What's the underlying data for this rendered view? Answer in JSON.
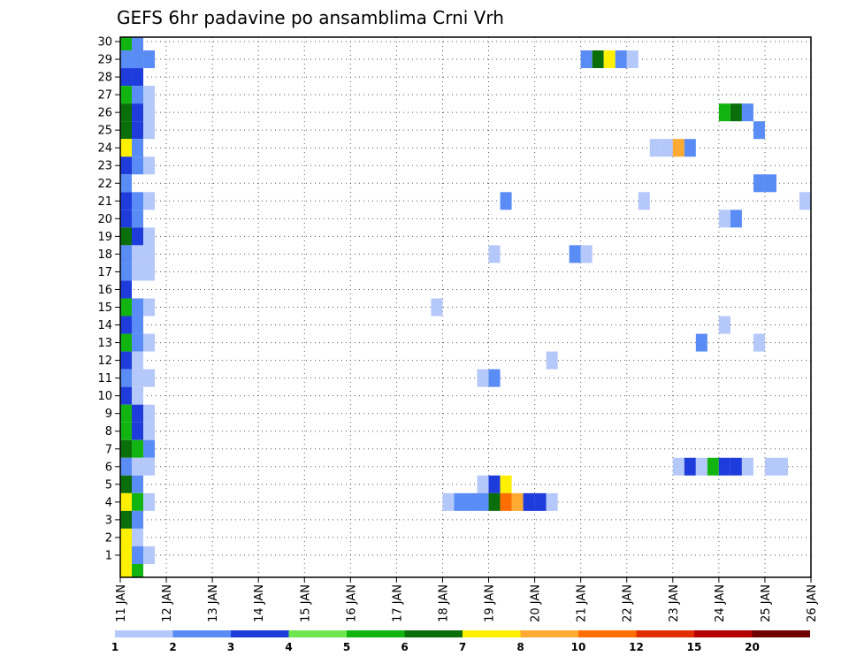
{
  "chart_data": {
    "type": "heatmap",
    "title": "GEFS 6hr padavine po ansamblima Crni Vrh",
    "xlabel": "",
    "ylabel": "",
    "x_ticks": [
      "11 JAN",
      "12 JAN",
      "13 JAN",
      "14 JAN",
      "15 JAN",
      "16 JAN",
      "17 JAN",
      "18 JAN",
      "19 JAN",
      "20 JAN",
      "21 JAN",
      "22 JAN",
      "23 JAN",
      "24 JAN",
      "25 JAN",
      "26 JAN"
    ],
    "x_range_days": [
      11,
      26
    ],
    "time_step_hours": 6,
    "y_ticks": [
      1,
      2,
      3,
      4,
      5,
      6,
      7,
      8,
      9,
      10,
      11,
      12,
      13,
      14,
      15,
      16,
      17,
      18,
      19,
      20,
      21,
      22,
      23,
      24,
      25,
      26,
      27,
      28,
      29,
      30
    ],
    "y_range": [
      0,
      30
    ],
    "grid": true,
    "colorbar": {
      "ticks": [
        "1",
        "2",
        "3",
        "4",
        "5",
        "6",
        "7",
        "8",
        "10",
        "12",
        "15",
        "20"
      ],
      "colors": [
        "#b4c8fa",
        "#5a8cf5",
        "#1e3cdc",
        "#6ee650",
        "#12b412",
        "#0a6e0a",
        "#fff000",
        "#ffaa32",
        "#ff6e00",
        "#e12d00",
        "#b40000",
        "#6e0000"
      ]
    },
    "cells": [
      {
        "member": 30,
        "day": 11.0,
        "level": 5
      },
      {
        "member": 30,
        "day": 11.25,
        "level": 2
      },
      {
        "member": 29,
        "day": 11.0,
        "level": 2
      },
      {
        "member": 29,
        "day": 11.25,
        "level": 2
      },
      {
        "member": 29,
        "day": 11.5,
        "level": 2
      },
      {
        "member": 29,
        "day": 21.0,
        "level": 2
      },
      {
        "member": 29,
        "day": 21.25,
        "level": 6
      },
      {
        "member": 29,
        "day": 21.5,
        "level": 7
      },
      {
        "member": 29,
        "day": 21.75,
        "level": 2
      },
      {
        "member": 29,
        "day": 22.0,
        "level": 1
      },
      {
        "member": 28,
        "day": 11.0,
        "level": 3
      },
      {
        "member": 28,
        "day": 11.25,
        "level": 3
      },
      {
        "member": 27,
        "day": 11.0,
        "level": 5
      },
      {
        "member": 27,
        "day": 11.25,
        "level": 2
      },
      {
        "member": 27,
        "day": 11.5,
        "level": 1
      },
      {
        "member": 26,
        "day": 11.0,
        "level": 6
      },
      {
        "member": 26,
        "day": 11.25,
        "level": 3
      },
      {
        "member": 26,
        "day": 11.5,
        "level": 1
      },
      {
        "member": 26,
        "day": 24.0,
        "level": 5
      },
      {
        "member": 26,
        "day": 24.25,
        "level": 6
      },
      {
        "member": 26,
        "day": 24.5,
        "level": 2
      },
      {
        "member": 25,
        "day": 11.0,
        "level": 6
      },
      {
        "member": 25,
        "day": 11.25,
        "level": 3
      },
      {
        "member": 25,
        "day": 11.5,
        "level": 1
      },
      {
        "member": 25,
        "day": 24.75,
        "level": 2
      },
      {
        "member": 24,
        "day": 11.0,
        "level": 7
      },
      {
        "member": 24,
        "day": 11.25,
        "level": 2
      },
      {
        "member": 24,
        "day": 22.5,
        "level": 1
      },
      {
        "member": 24,
        "day": 22.75,
        "level": 1
      },
      {
        "member": 24,
        "day": 23.0,
        "level": 8
      },
      {
        "member": 24,
        "day": 23.25,
        "level": 2
      },
      {
        "member": 23,
        "day": 11.0,
        "level": 3
      },
      {
        "member": 23,
        "day": 11.25,
        "level": 2
      },
      {
        "member": 23,
        "day": 11.5,
        "level": 1
      },
      {
        "member": 22,
        "day": 11.0,
        "level": 2
      },
      {
        "member": 22,
        "day": 24.75,
        "level": 2
      },
      {
        "member": 22,
        "day": 25.0,
        "level": 2
      },
      {
        "member": 21,
        "day": 11.0,
        "level": 3
      },
      {
        "member": 21,
        "day": 11.25,
        "level": 2
      },
      {
        "member": 21,
        "day": 11.5,
        "level": 1
      },
      {
        "member": 21,
        "day": 19.25,
        "level": 2
      },
      {
        "member": 21,
        "day": 22.25,
        "level": 1
      },
      {
        "member": 21,
        "day": 25.75,
        "level": 1
      },
      {
        "member": 21,
        "day": 26.0,
        "level": 6
      },
      {
        "member": 20,
        "day": 11.0,
        "level": 3
      },
      {
        "member": 20,
        "day": 11.25,
        "level": 2
      },
      {
        "member": 20,
        "day": 24.0,
        "level": 1
      },
      {
        "member": 20,
        "day": 24.25,
        "level": 2
      },
      {
        "member": 19,
        "day": 11.0,
        "level": 6
      },
      {
        "member": 19,
        "day": 11.25,
        "level": 3
      },
      {
        "member": 19,
        "day": 11.5,
        "level": 1
      },
      {
        "member": 18,
        "day": 11.0,
        "level": 2
      },
      {
        "member": 18,
        "day": 11.25,
        "level": 1
      },
      {
        "member": 18,
        "day": 11.5,
        "level": 1
      },
      {
        "member": 18,
        "day": 19.0,
        "level": 1
      },
      {
        "member": 18,
        "day": 20.75,
        "level": 2
      },
      {
        "member": 18,
        "day": 21.0,
        "level": 1
      },
      {
        "member": 17,
        "day": 11.0,
        "level": 2
      },
      {
        "member": 17,
        "day": 11.25,
        "level": 1
      },
      {
        "member": 17,
        "day": 11.5,
        "level": 1
      },
      {
        "member": 16,
        "day": 11.0,
        "level": 3
      },
      {
        "member": 15,
        "day": 11.0,
        "level": 5
      },
      {
        "member": 15,
        "day": 11.25,
        "level": 2
      },
      {
        "member": 15,
        "day": 11.5,
        "level": 1
      },
      {
        "member": 15,
        "day": 17.75,
        "level": 1
      },
      {
        "member": 14,
        "day": 11.0,
        "level": 3
      },
      {
        "member": 14,
        "day": 11.25,
        "level": 2
      },
      {
        "member": 14,
        "day": 24.0,
        "level": 1
      },
      {
        "member": 13,
        "day": 11.0,
        "level": 5
      },
      {
        "member": 13,
        "day": 11.25,
        "level": 2
      },
      {
        "member": 13,
        "day": 11.5,
        "level": 1
      },
      {
        "member": 13,
        "day": 23.5,
        "level": 2
      },
      {
        "member": 13,
        "day": 24.75,
        "level": 1
      },
      {
        "member": 12,
        "day": 11.0,
        "level": 3
      },
      {
        "member": 12,
        "day": 11.25,
        "level": 1
      },
      {
        "member": 12,
        "day": 20.25,
        "level": 1
      },
      {
        "member": 11,
        "day": 11.0,
        "level": 2
      },
      {
        "member": 11,
        "day": 11.25,
        "level": 1
      },
      {
        "member": 11,
        "day": 11.5,
        "level": 1
      },
      {
        "member": 11,
        "day": 18.75,
        "level": 1
      },
      {
        "member": 11,
        "day": 19.0,
        "level": 2
      },
      {
        "member": 10,
        "day": 11.0,
        "level": 3
      },
      {
        "member": 10,
        "day": 11.25,
        "level": 1
      },
      {
        "member": 9,
        "day": 11.0,
        "level": 5
      },
      {
        "member": 9,
        "day": 11.25,
        "level": 3
      },
      {
        "member": 9,
        "day": 11.5,
        "level": 1
      },
      {
        "member": 8,
        "day": 11.0,
        "level": 5
      },
      {
        "member": 8,
        "day": 11.25,
        "level": 3
      },
      {
        "member": 8,
        "day": 11.5,
        "level": 1
      },
      {
        "member": 7,
        "day": 11.0,
        "level": 6
      },
      {
        "member": 7,
        "day": 11.25,
        "level": 5
      },
      {
        "member": 7,
        "day": 11.5,
        "level": 2
      },
      {
        "member": 6,
        "day": 11.0,
        "level": 2
      },
      {
        "member": 6,
        "day": 11.25,
        "level": 1
      },
      {
        "member": 6,
        "day": 11.5,
        "level": 1
      },
      {
        "member": 6,
        "day": 23.0,
        "level": 1
      },
      {
        "member": 6,
        "day": 23.25,
        "level": 3
      },
      {
        "member": 6,
        "day": 23.5,
        "level": 1
      },
      {
        "member": 6,
        "day": 23.75,
        "level": 5
      },
      {
        "member": 6,
        "day": 24.0,
        "level": 3
      },
      {
        "member": 6,
        "day": 24.25,
        "level": 3
      },
      {
        "member": 6,
        "day": 24.5,
        "level": 1
      },
      {
        "member": 6,
        "day": 25.0,
        "level": 1
      },
      {
        "member": 6,
        "day": 25.25,
        "level": 1
      },
      {
        "member": 5,
        "day": 11.0,
        "level": 6
      },
      {
        "member": 5,
        "day": 11.25,
        "level": 2
      },
      {
        "member": 5,
        "day": 18.75,
        "level": 1
      },
      {
        "member": 5,
        "day": 19.0,
        "level": 3
      },
      {
        "member": 5,
        "day": 19.25,
        "level": 7
      },
      {
        "member": 4,
        "day": 11.0,
        "level": 7
      },
      {
        "member": 4,
        "day": 11.25,
        "level": 5
      },
      {
        "member": 4,
        "day": 11.5,
        "level": 1
      },
      {
        "member": 4,
        "day": 18.0,
        "level": 1
      },
      {
        "member": 4,
        "day": 18.25,
        "level": 2
      },
      {
        "member": 4,
        "day": 18.5,
        "level": 2
      },
      {
        "member": 4,
        "day": 18.75,
        "level": 2
      },
      {
        "member": 4,
        "day": 19.0,
        "level": 6
      },
      {
        "member": 4,
        "day": 19.25,
        "level": 9
      },
      {
        "member": 4,
        "day": 19.5,
        "level": 8
      },
      {
        "member": 4,
        "day": 19.75,
        "level": 3
      },
      {
        "member": 4,
        "day": 20.0,
        "level": 3
      },
      {
        "member": 4,
        "day": 20.25,
        "level": 1
      },
      {
        "member": 3,
        "day": 11.0,
        "level": 6
      },
      {
        "member": 3,
        "day": 11.25,
        "level": 2
      },
      {
        "member": 2,
        "day": 11.0,
        "level": 7
      },
      {
        "member": 2,
        "day": 11.25,
        "level": 1
      },
      {
        "member": 1,
        "day": 11.0,
        "level": 7
      },
      {
        "member": 1,
        "day": 11.25,
        "level": 2
      },
      {
        "member": 1,
        "day": 11.5,
        "level": 1
      },
      {
        "member": 0,
        "day": 11.0,
        "level": 7
      },
      {
        "member": 0,
        "day": 11.25,
        "level": 5
      }
    ]
  }
}
